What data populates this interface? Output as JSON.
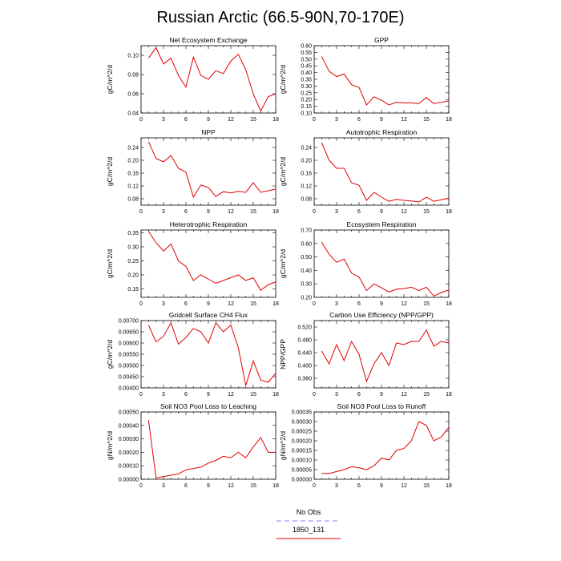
{
  "figure": {
    "title": "Russian Arctic (66.5-90N,70-170E)",
    "legend": [
      {
        "label": "No Obs",
        "color": "#8080ff",
        "dash": true
      },
      {
        "label": "1850_131",
        "color": "#e00000",
        "dash": false
      }
    ]
  },
  "chart_data": [
    {
      "type": "line",
      "title": "Net Ecosystem Exchange",
      "ylabel": "gC/m^2/d",
      "xlim": [
        0,
        18
      ],
      "ylim": [
        0.04,
        0.11
      ],
      "xticks": [
        0,
        3,
        6,
        9,
        12,
        15,
        18
      ],
      "yticks": [
        0.04,
        0.06,
        0.08,
        0.1
      ],
      "ytick_labels": [
        "0.04",
        "0.06",
        "0.08",
        "0.10"
      ],
      "x": [
        1,
        2,
        3,
        4,
        5,
        6,
        7,
        8,
        9,
        10,
        11,
        12,
        13,
        14,
        15,
        16,
        17,
        18
      ],
      "series": [
        {
          "name": "1850_131",
          "color": "#e00000",
          "values": [
            0.097,
            0.108,
            0.091,
            0.097,
            0.079,
            0.067,
            0.098,
            0.079,
            0.075,
            0.084,
            0.081,
            0.094,
            0.101,
            0.085,
            0.06,
            0.042,
            0.057,
            0.06
          ]
        }
      ]
    },
    {
      "type": "line",
      "title": "GPP",
      "ylabel": "gC/m^2/d",
      "xlim": [
        0,
        18
      ],
      "ylim": [
        0.1,
        0.6
      ],
      "xticks": [
        0,
        3,
        6,
        9,
        12,
        15,
        18
      ],
      "yticks": [
        0.1,
        0.15,
        0.2,
        0.25,
        0.3,
        0.35,
        0.4,
        0.45,
        0.5,
        0.55,
        0.6
      ],
      "ytick_labels": [
        "0.10",
        "0.15",
        "0.20",
        "0.25",
        "0.30",
        "0.35",
        "0.40",
        "0.45",
        "0.50",
        "0.55",
        "0.60"
      ],
      "x": [
        1,
        2,
        3,
        4,
        5,
        6,
        7,
        8,
        9,
        10,
        11,
        12,
        13,
        14,
        15,
        16,
        17,
        18
      ],
      "series": [
        {
          "name": "1850_131",
          "color": "#e00000",
          "values": [
            0.52,
            0.41,
            0.37,
            0.39,
            0.31,
            0.29,
            0.16,
            0.22,
            0.195,
            0.16,
            0.18,
            0.175,
            0.175,
            0.17,
            0.215,
            0.17,
            0.18,
            0.19
          ]
        }
      ]
    },
    {
      "type": "line",
      "title": "NPP",
      "ylabel": "gC/m^2/d",
      "xlim": [
        0,
        18
      ],
      "ylim": [
        0.06,
        0.27
      ],
      "xticks": [
        0,
        3,
        6,
        9,
        12,
        15,
        18
      ],
      "yticks": [
        0.08,
        0.12,
        0.16,
        0.2,
        0.24
      ],
      "ytick_labels": [
        "0.08",
        "0.12",
        "0.16",
        "0.20",
        "0.24"
      ],
      "x": [
        1,
        2,
        3,
        4,
        5,
        6,
        7,
        8,
        9,
        10,
        11,
        12,
        13,
        14,
        15,
        16,
        17,
        18
      ],
      "series": [
        {
          "name": "1850_131",
          "color": "#e00000",
          "values": [
            0.258,
            0.206,
            0.195,
            0.215,
            0.175,
            0.163,
            0.085,
            0.123,
            0.115,
            0.087,
            0.102,
            0.098,
            0.103,
            0.1,
            0.13,
            0.1,
            0.105,
            0.11
          ]
        }
      ]
    },
    {
      "type": "line",
      "title": "Autotrophic Respiration",
      "ylabel": "gC/m^2/d",
      "xlim": [
        0,
        18
      ],
      "ylim": [
        0.06,
        0.27
      ],
      "xticks": [
        0,
        3,
        6,
        9,
        12,
        15,
        18
      ],
      "yticks": [
        0.08,
        0.12,
        0.16,
        0.2,
        0.24
      ],
      "ytick_labels": [
        "0.08",
        "0.12",
        "0.16",
        "0.20",
        "0.24"
      ],
      "x": [
        1,
        2,
        3,
        4,
        5,
        6,
        7,
        8,
        9,
        10,
        11,
        12,
        13,
        14,
        15,
        16,
        17,
        18
      ],
      "series": [
        {
          "name": "1850_131",
          "color": "#e00000",
          "values": [
            0.255,
            0.2,
            0.175,
            0.175,
            0.13,
            0.122,
            0.075,
            0.1,
            0.085,
            0.072,
            0.078,
            0.075,
            0.073,
            0.07,
            0.085,
            0.072,
            0.077,
            0.082
          ]
        }
      ]
    },
    {
      "type": "line",
      "title": "Heterotrophic Respiration",
      "ylabel": "gC/m^2/d",
      "xlim": [
        0,
        18
      ],
      "ylim": [
        0.12,
        0.36
      ],
      "xticks": [
        0,
        3,
        6,
        9,
        12,
        15,
        18
      ],
      "yticks": [
        0.15,
        0.2,
        0.25,
        0.3,
        0.35
      ],
      "ytick_labels": [
        "0.15",
        "0.20",
        "0.25",
        "0.30",
        "0.35"
      ],
      "x": [
        1,
        2,
        3,
        4,
        5,
        6,
        7,
        8,
        9,
        10,
        11,
        12,
        13,
        14,
        15,
        16,
        17,
        18
      ],
      "series": [
        {
          "name": "1850_131",
          "color": "#e00000",
          "values": [
            0.355,
            0.315,
            0.285,
            0.31,
            0.25,
            0.23,
            0.18,
            0.2,
            0.185,
            0.17,
            0.18,
            0.19,
            0.2,
            0.18,
            0.19,
            0.145,
            0.165,
            0.175
          ]
        }
      ]
    },
    {
      "type": "line",
      "title": "Ecosystem Respiration",
      "ylabel": "gC/m^2/d",
      "xlim": [
        0,
        18
      ],
      "ylim": [
        0.2,
        0.7
      ],
      "xticks": [
        0,
        3,
        6,
        9,
        12,
        15,
        18
      ],
      "yticks": [
        0.2,
        0.3,
        0.4,
        0.5,
        0.6,
        0.7
      ],
      "ytick_labels": [
        "0.20",
        "0.30",
        "0.40",
        "0.50",
        "0.60",
        "0.70"
      ],
      "x": [
        1,
        2,
        3,
        4,
        5,
        6,
        7,
        8,
        9,
        10,
        11,
        12,
        13,
        14,
        15,
        16,
        17,
        18
      ],
      "series": [
        {
          "name": "1850_131",
          "color": "#e00000",
          "values": [
            0.61,
            0.52,
            0.46,
            0.485,
            0.38,
            0.35,
            0.25,
            0.3,
            0.27,
            0.24,
            0.26,
            0.265,
            0.275,
            0.25,
            0.275,
            0.21,
            0.235,
            0.255
          ]
        }
      ]
    },
    {
      "type": "line",
      "title": "Gridcell Surface CH4 Flux",
      "ylabel": "gC/m^2/d",
      "xlim": [
        0,
        18
      ],
      "ylim": [
        0.004,
        0.007
      ],
      "xticks": [
        0,
        3,
        6,
        9,
        12,
        15,
        18
      ],
      "yticks": [
        0.004,
        0.0045,
        0.005,
        0.0055,
        0.006,
        0.0065,
        0.007
      ],
      "ytick_labels": [
        "0.00400",
        "0.00450",
        "0.00500",
        "0.00550",
        "0.00600",
        "0.00650",
        "0.00700"
      ],
      "x": [
        1,
        2,
        3,
        4,
        5,
        6,
        7,
        8,
        9,
        10,
        11,
        12,
        13,
        14,
        15,
        16,
        17,
        18
      ],
      "series": [
        {
          "name": "1850_131",
          "color": "#e00000",
          "values": [
            0.0068,
            0.00605,
            0.0063,
            0.0069,
            0.00595,
            0.00625,
            0.00665,
            0.0065,
            0.006,
            0.0069,
            0.0065,
            0.0068,
            0.0058,
            0.0041,
            0.0052,
            0.00435,
            0.00425,
            0.00465
          ]
        }
      ]
    },
    {
      "type": "line",
      "title": "Carbon Use Efficiency (NPP/GPP)",
      "ylabel": "NPP/GPP",
      "xlim": [
        0,
        18
      ],
      "ylim": [
        0.33,
        0.54
      ],
      "xticks": [
        0,
        3,
        6,
        9,
        12,
        15,
        18
      ],
      "yticks": [
        0.36,
        0.4,
        0.44,
        0.48,
        0.52
      ],
      "ytick_labels": [
        "0.360",
        "0.400",
        "0.440",
        "0.480",
        "0.520"
      ],
      "x": [
        1,
        2,
        3,
        4,
        5,
        6,
        7,
        8,
        9,
        10,
        11,
        12,
        13,
        14,
        15,
        16,
        17,
        18
      ],
      "series": [
        {
          "name": "1850_131",
          "color": "#e00000",
          "values": [
            0.445,
            0.405,
            0.465,
            0.415,
            0.475,
            0.435,
            0.35,
            0.405,
            0.44,
            0.4,
            0.47,
            0.465,
            0.475,
            0.475,
            0.51,
            0.46,
            0.475,
            0.47
          ]
        }
      ]
    },
    {
      "type": "line",
      "title": "Soil NO3 Pool Loss to Leaching",
      "ylabel": "gN/m^2/d",
      "xlim": [
        0,
        18
      ],
      "ylim": [
        0,
        0.0005
      ],
      "xticks": [
        0,
        3,
        6,
        9,
        12,
        15,
        18
      ],
      "yticks": [
        0,
        0.0001,
        0.0002,
        0.0003,
        0.0004,
        0.0005
      ],
      "ytick_labels": [
        "0.00000",
        "0.00010",
        "0.00020",
        "0.00030",
        "0.00040",
        "0.00050"
      ],
      "x": [
        1,
        2,
        3,
        4,
        5,
        6,
        7,
        8,
        9,
        10,
        11,
        12,
        13,
        14,
        15,
        16,
        17,
        18
      ],
      "series": [
        {
          "name": "1850_131",
          "color": "#e00000",
          "values": [
            0.00044,
            1e-05,
            2e-05,
            3e-05,
            4e-05,
            7e-05,
            8e-05,
            9e-05,
            0.00012,
            0.00014,
            0.00017,
            0.00016,
            0.0002,
            0.00016,
            0.00024,
            0.00031,
            0.0002,
            0.0002
          ]
        }
      ]
    },
    {
      "type": "line",
      "title": "Soil NO3 Pool Loss to Runoff",
      "ylabel": "gN/m^2/d",
      "xlim": [
        0,
        18
      ],
      "ylim": [
        0,
        0.00035
      ],
      "xticks": [
        0,
        3,
        6,
        9,
        12,
        15,
        18
      ],
      "yticks": [
        0,
        5e-05,
        0.0001,
        0.00015,
        0.0002,
        0.00025,
        0.0003,
        0.00035
      ],
      "ytick_labels": [
        "0.00000",
        "0.00005",
        "0.00010",
        "0.00015",
        "0.00020",
        "0.00025",
        "0.00030",
        "0.00035"
      ],
      "x": [
        1,
        2,
        3,
        4,
        5,
        6,
        7,
        8,
        9,
        10,
        11,
        12,
        13,
        14,
        15,
        16,
        17,
        18
      ],
      "series": [
        {
          "name": "1850_131",
          "color": "#e00000",
          "values": [
            3e-05,
            3e-05,
            4e-05,
            5e-05,
            6.5e-05,
            6e-05,
            5e-05,
            7e-05,
            0.00011,
            0.0001,
            0.00015,
            0.00016,
            0.0002,
            0.0003,
            0.00028,
            0.0002,
            0.00022,
            0.00027
          ]
        }
      ]
    }
  ]
}
